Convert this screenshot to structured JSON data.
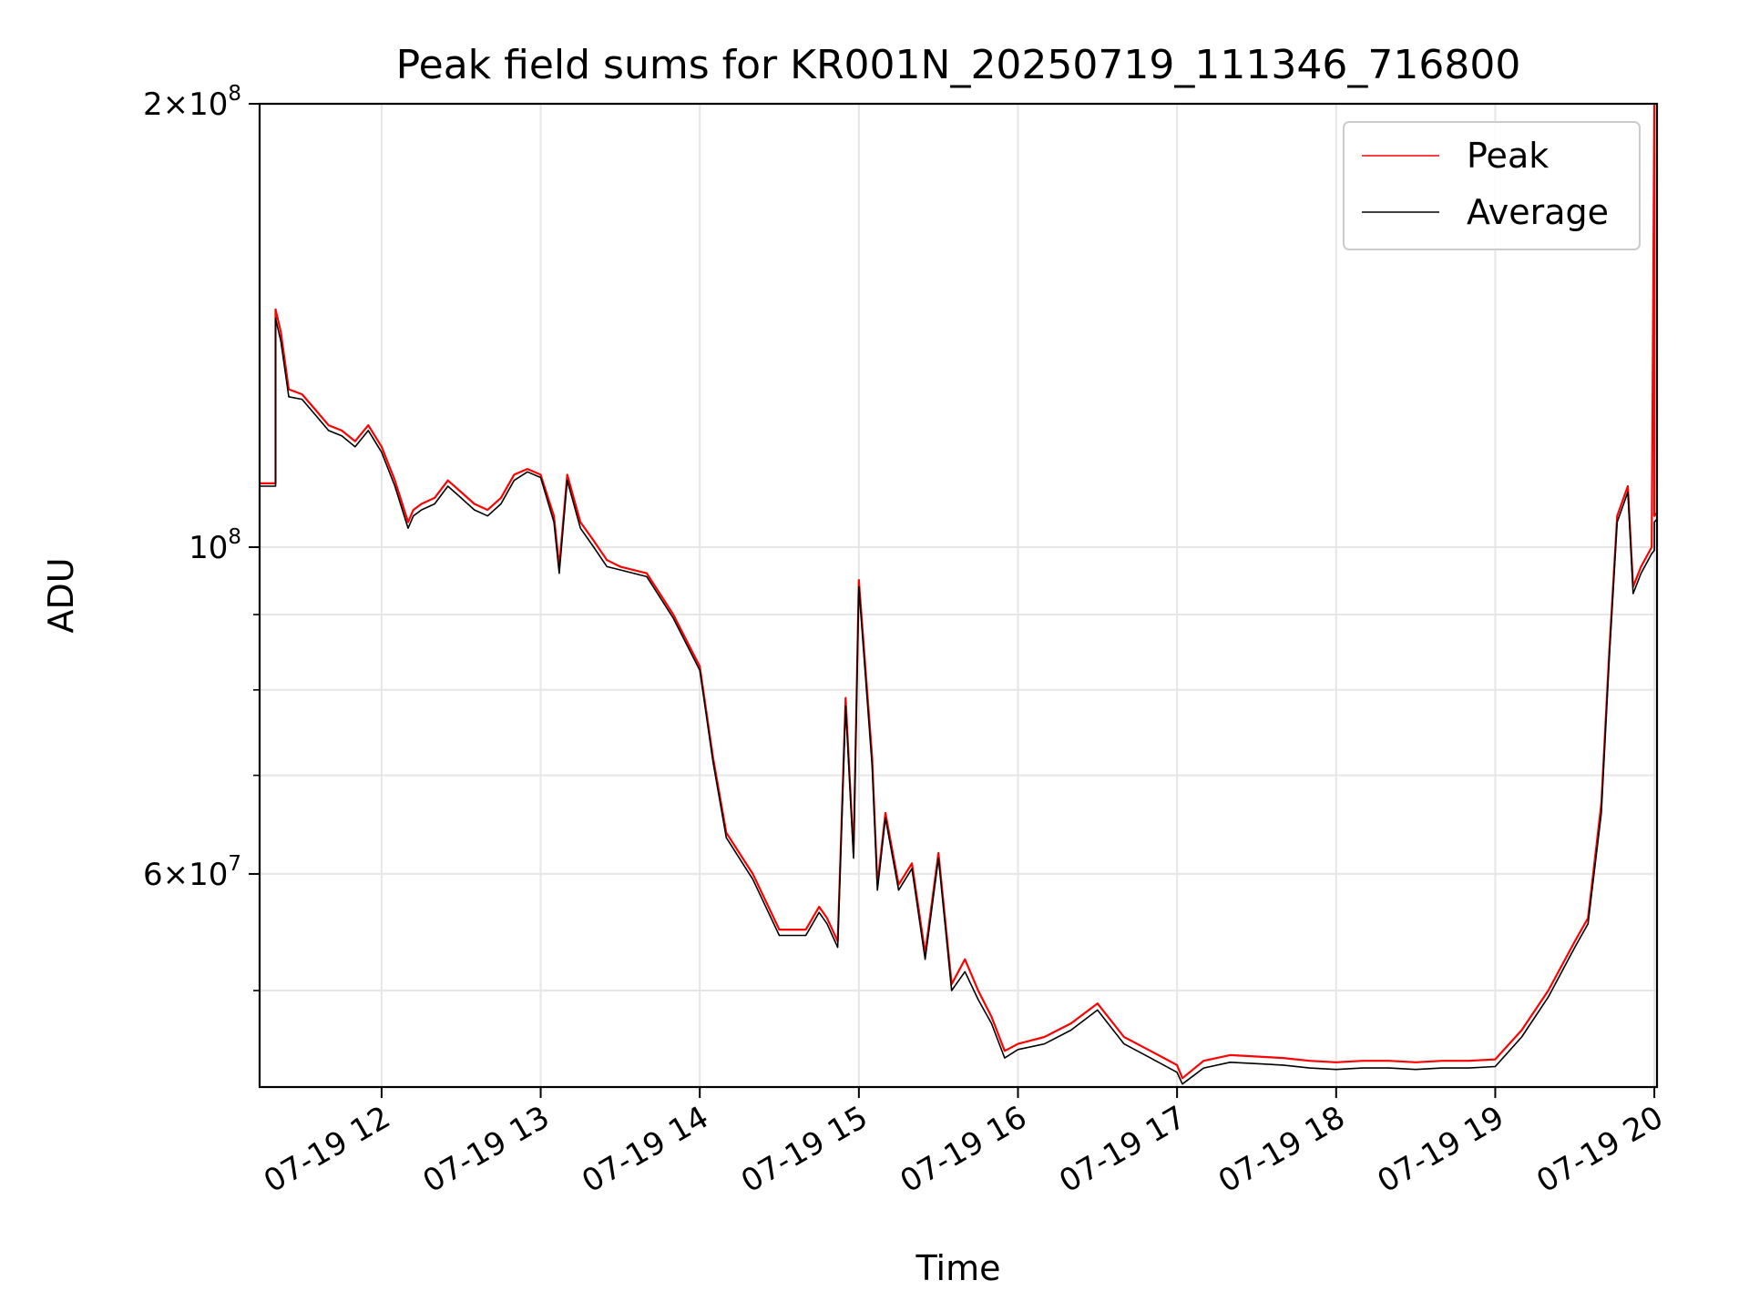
{
  "chart_data": {
    "type": "line",
    "title": "Peak field sums for KR001N_20250719_111346_716800",
    "xlabel": "Time",
    "ylabel": "ADU",
    "yscale": "log",
    "grid": true,
    "legend_position": "top-right",
    "x_range": [
      "07-19 11:14",
      "07-19 20:01"
    ],
    "y_range": [
      43000000,
      200000000
    ],
    "x_ticks": [
      {
        "value": "07-19 12:00",
        "label": "07-19 12"
      },
      {
        "value": "07-19 13:00",
        "label": "07-19 13"
      },
      {
        "value": "07-19 14:00",
        "label": "07-19 14"
      },
      {
        "value": "07-19 15:00",
        "label": "07-19 15"
      },
      {
        "value": "07-19 16:00",
        "label": "07-19 16"
      },
      {
        "value": "07-19 17:00",
        "label": "07-19 17"
      },
      {
        "value": "07-19 18:00",
        "label": "07-19 18"
      },
      {
        "value": "07-19 19:00",
        "label": "07-19 19"
      },
      {
        "value": "07-19 20:00",
        "label": "07-19 20"
      }
    ],
    "y_ticks_major": [
      {
        "value": 60000000,
        "mant": "6",
        "exp": "7"
      },
      {
        "value": 100000000,
        "mant": "",
        "exp": "8"
      },
      {
        "value": 200000000,
        "mant": "2",
        "exp": "8"
      }
    ],
    "y_ticks_minor": [
      50000000,
      70000000,
      80000000,
      90000000
    ],
    "x": [
      "07-19 11:14",
      "07-19 11:20",
      "07-19 11:20",
      "07-19 11:22",
      "07-19 11:25",
      "07-19 11:30",
      "07-19 11:35",
      "07-19 11:40",
      "07-19 11:45",
      "07-19 11:50",
      "07-19 11:55",
      "07-19 12:00",
      "07-19 12:05",
      "07-19 12:10",
      "07-19 12:12",
      "07-19 12:15",
      "07-19 12:20",
      "07-19 12:25",
      "07-19 12:30",
      "07-19 12:35",
      "07-19 12:40",
      "07-19 12:45",
      "07-19 12:50",
      "07-19 12:55",
      "07-19 13:00",
      "07-19 13:05",
      "07-19 13:07",
      "07-19 13:10",
      "07-19 13:15",
      "07-19 13:20",
      "07-19 13:25",
      "07-19 13:30",
      "07-19 13:40",
      "07-19 13:50",
      "07-19 14:00",
      "07-19 14:05",
      "07-19 14:10",
      "07-19 14:20",
      "07-19 14:30",
      "07-19 14:35",
      "07-19 14:40",
      "07-19 14:45",
      "07-19 14:48",
      "07-19 14:50",
      "07-19 14:52",
      "07-19 14:55",
      "07-19 14:58",
      "07-19 15:00",
      "07-19 15:05",
      "07-19 15:07",
      "07-19 15:10",
      "07-19 15:15",
      "07-19 15:20",
      "07-19 15:25",
      "07-19 15:30",
      "07-19 15:35",
      "07-19 15:40",
      "07-19 15:45",
      "07-19 15:50",
      "07-19 15:55",
      "07-19 16:00",
      "07-19 16:10",
      "07-19 16:20",
      "07-19 16:30",
      "07-19 16:40",
      "07-19 16:50",
      "07-19 17:00",
      "07-19 17:02",
      "07-19 17:10",
      "07-19 17:20",
      "07-19 17:30",
      "07-19 17:40",
      "07-19 17:50",
      "07-19 18:00",
      "07-19 18:10",
      "07-19 18:20",
      "07-19 18:30",
      "07-19 18:40",
      "07-19 18:50",
      "07-19 19:00",
      "07-19 19:10",
      "07-19 19:20",
      "07-19 19:30",
      "07-19 19:35",
      "07-19 19:40",
      "07-19 19:43",
      "07-19 19:46",
      "07-19 19:50",
      "07-19 19:52",
      "07-19 19:55",
      "07-19 19:59",
      "07-19 20:00",
      "07-19 20:00",
      "07-19 20:01"
    ],
    "series": [
      {
        "name": "Peak",
        "color": "#ff0000",
        "values": [
          110500000,
          110500000,
          145000000,
          140000000,
          128000000,
          127000000,
          124000000,
          121000000,
          120000000,
          118000000,
          121000000,
          117000000,
          111000000,
          104000000,
          106000000,
          107000000,
          108000000,
          111000000,
          109000000,
          107000000,
          106000000,
          108000000,
          112000000,
          113000000,
          112000000,
          105000000,
          97000000,
          112000000,
          104000000,
          101000000,
          98000000,
          97000000,
          96000000,
          90000000,
          83000000,
          72000000,
          64000000,
          60000000,
          55000000,
          55000000,
          55000000,
          57000000,
          56000000,
          55000000,
          54000000,
          79000000,
          62000000,
          95000000,
          72000000,
          59000000,
          66000000,
          59000000,
          61000000,
          53000000,
          62000000,
          50500000,
          52500000,
          50000000,
          48000000,
          45500000,
          46000000,
          46500000,
          47500000,
          49000000,
          46500000,
          45500000,
          44500000,
          43600000,
          44800000,
          45200000,
          45100000,
          45000000,
          44800000,
          44700000,
          44800000,
          44800000,
          44700000,
          44800000,
          44800000,
          44900000,
          47000000,
          50000000,
          54000000,
          56000000,
          67000000,
          85000000,
          105000000,
          110000000,
          94000000,
          97000000,
          100000000,
          200000000,
          105000000,
          105500000
        ]
      },
      {
        "name": "Average",
        "color": "#000000",
        "values": [
          110000000,
          110000000,
          143000000,
          138000000,
          126500000,
          126000000,
          123000000,
          120000000,
          119000000,
          117000000,
          120000000,
          116000000,
          110000000,
          103000000,
          105000000,
          106000000,
          107000000,
          110000000,
          108000000,
          106000000,
          105000000,
          107000000,
          111000000,
          112500000,
          111500000,
          104000000,
          96000000,
          111000000,
          103000000,
          100000000,
          97000000,
          96500000,
          95500000,
          89500000,
          82500000,
          71500000,
          63500000,
          59500000,
          54500000,
          54500000,
          54500000,
          56500000,
          55500000,
          54500000,
          53500000,
          78000000,
          61500000,
          94000000,
          71000000,
          58500000,
          65500000,
          58500000,
          60500000,
          52500000,
          61500000,
          50000000,
          51500000,
          49300000,
          47500000,
          45000000,
          45600000,
          46000000,
          47000000,
          48500000,
          46000000,
          45000000,
          44000000,
          43200000,
          44300000,
          44700000,
          44600000,
          44500000,
          44300000,
          44200000,
          44300000,
          44300000,
          44200000,
          44300000,
          44300000,
          44400000,
          46500000,
          49500000,
          53500000,
          55500000,
          66000000,
          84000000,
          104000000,
          109000000,
          93000000,
          96000000,
          99000000,
          99500000,
          104000000,
          104500000
        ]
      }
    ]
  }
}
